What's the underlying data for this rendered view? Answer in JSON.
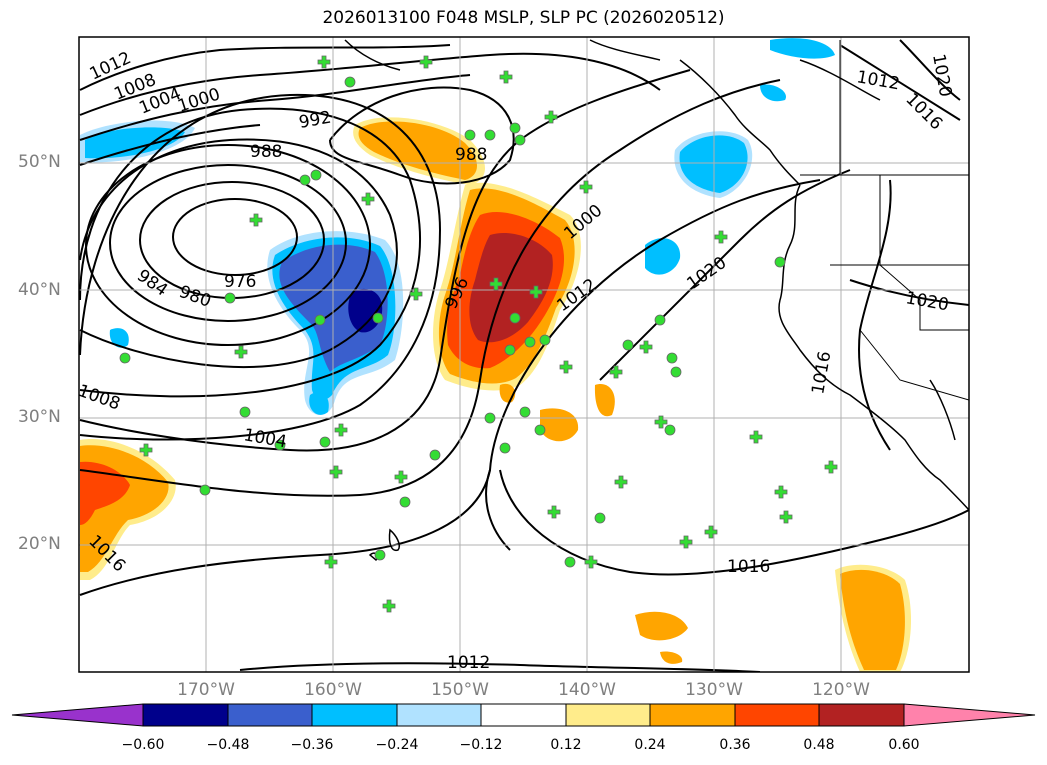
{
  "title": "2026013100 F048 MSLP, SLP PC (2026020512)",
  "lat_labels": [
    "50°N",
    "40°N",
    "30°N",
    "20°N"
  ],
  "lon_labels": [
    "170°W",
    "160°W",
    "150°W",
    "140°W",
    "130°W",
    "120°W"
  ],
  "colorbar": {
    "ticks": [
      "−0.60",
      "−0.48",
      "−0.36",
      "−0.24",
      "−0.12",
      "0.12",
      "0.24",
      "0.36",
      "0.48",
      "0.60"
    ],
    "colors": [
      "#9932cc",
      "#00008b",
      "#3a5fcd",
      "#00bfff",
      "#b0e2ff",
      "#ffffff",
      "#ffec8b",
      "#ffa500",
      "#ff4500",
      "#b22222",
      "#ff82ab"
    ]
  },
  "contour_labels": [
    "1012",
    "1008",
    "1004",
    "1000",
    "992",
    "988",
    "988",
    "984",
    "980",
    "976",
    "996",
    "1000",
    "1012",
    "1020",
    "1020",
    "1016",
    "1012",
    "1016",
    "1020",
    "1008",
    "1004",
    "1016",
    "1016",
    "1012"
  ]
}
